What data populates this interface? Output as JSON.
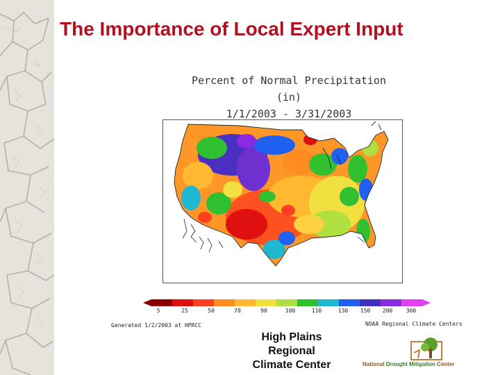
{
  "slide": {
    "title": "The Importance of Local Expert Input"
  },
  "map": {
    "title_line1": "Percent of Normal Precipitation (in)",
    "title_line2": "1/1/2003 - 3/31/2003",
    "region": "Contiguous United States",
    "legend": {
      "labels": [
        "5",
        "25",
        "50",
        "70",
        "90",
        "100",
        "110",
        "130",
        "150",
        "200",
        "300"
      ],
      "colors": [
        "#8b0000",
        "#e01010",
        "#ff4020",
        "#ff8c20",
        "#ffb830",
        "#f0e040",
        "#b0e040",
        "#30c030",
        "#20b8d0",
        "#2060f0",
        "#4030c0",
        "#8a2be2",
        "#e040f0"
      ]
    },
    "generated_note": "Generated 1/2/2003 at HPRCC",
    "source_note": "NOAA Regional Climate Centers"
  },
  "credits": {
    "hprcc_line1": "High Plains",
    "hprcc_line2": "Regional",
    "hprcc_line3": "Climate Center",
    "ndmc_word1": "National",
    "ndmc_word2": "Drought Mitigation",
    "ndmc_word3": "Center"
  }
}
